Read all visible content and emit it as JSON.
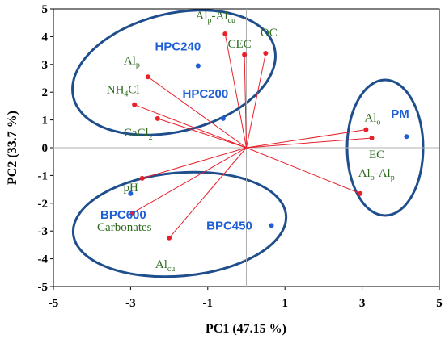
{
  "chart_data": {
    "type": "scatter",
    "title": "",
    "xlabel": "PC1 (47.15 %)",
    "ylabel": "PC2 (33.7 %)",
    "xlim": [
      -5,
      5
    ],
    "ylim": [
      -5,
      5
    ],
    "xticks": [
      "-5",
      "-3",
      "-1",
      "1",
      "3",
      "5"
    ],
    "yticks": [
      "5",
      "4",
      "3",
      "2",
      "1",
      "0",
      "-1",
      "-2",
      "-3",
      "-4",
      "-5"
    ],
    "grid": false,
    "loadings": [
      {
        "label": "Al",
        "sub": "p",
        "tail": "-Al",
        "tail_sub": "cu",
        "x": -0.55,
        "y": 4.1
      },
      {
        "label": "CEC",
        "x": -0.05,
        "y": 3.35
      },
      {
        "label": "OC",
        "x": 0.5,
        "y": 3.4
      },
      {
        "label": "Al",
        "sub": "p",
        "x": -2.55,
        "y": 2.55
      },
      {
        "label": "NH",
        "sub": "4",
        "tail": "Cl",
        "x": -2.9,
        "y": 1.55
      },
      {
        "label": "CaCl",
        "sub": "2",
        "x": -2.3,
        "y": 1.05
      },
      {
        "label": "Al",
        "sub": "o",
        "x": 3.1,
        "y": 0.65
      },
      {
        "label": "EC",
        "x": 3.25,
        "y": 0.35
      },
      {
        "label": "Al",
        "sub": "o",
        "tail": "-Al",
        "tail_sub": "p",
        "x": 2.95,
        "y": -1.65
      },
      {
        "label": "pH",
        "x": -2.7,
        "y": -1.1
      },
      {
        "label": "Carbonates",
        "x": -2.95,
        "y": -2.35
      },
      {
        "label": "Al",
        "sub": "cu",
        "x": -2.0,
        "y": -3.25
      }
    ],
    "samples": [
      {
        "label": "HPC240",
        "x": -1.25,
        "y": 2.95
      },
      {
        "label": "HPC200",
        "x": -0.6,
        "y": 1.05
      },
      {
        "label": "PM",
        "x": 4.15,
        "y": 0.4
      },
      {
        "label": "BPC600",
        "x": -3.0,
        "y": -1.65
      },
      {
        "label": "BPC450",
        "x": 0.65,
        "y": -2.8
      }
    ],
    "colors": {
      "loading_line": "#e8202a",
      "loading_point": "#e8202a",
      "loading_label": "#2e6b1f",
      "sample_point": "#1f5fd6",
      "sample_label": "#1f5fd6",
      "group_ellipse": "#1f4e8c",
      "axis": "#000000",
      "zero_line": "#b0b0b0"
    }
  }
}
